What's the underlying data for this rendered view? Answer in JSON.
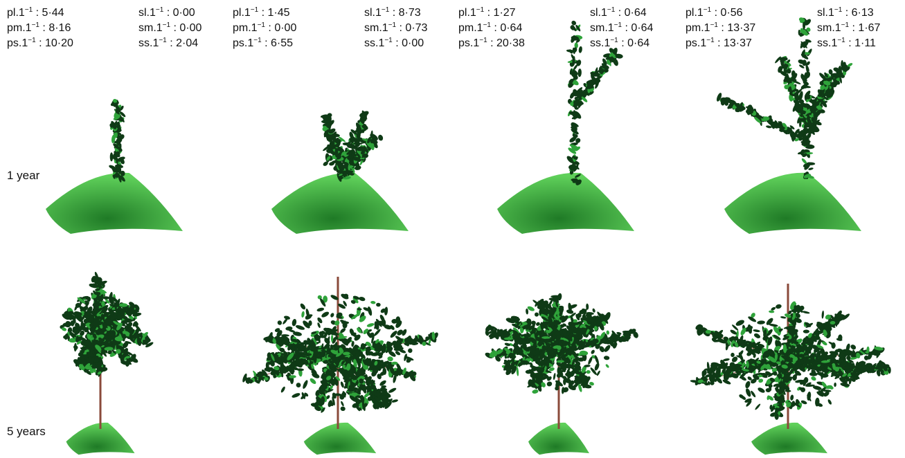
{
  "row_labels": {
    "year1": "1 year",
    "year5": "5 years"
  },
  "panels": [
    {
      "pl": "5·44",
      "pm": "8·16",
      "ps": "10·20",
      "sl": "0·00",
      "sm": "0·00",
      "ss": "2·04"
    },
    {
      "pl": "1·45",
      "pm": "0·00",
      "ps": "6·55",
      "sl": "8·73",
      "sm": "0·73",
      "ss": "0·00"
    },
    {
      "pl": "1·27",
      "pm": "0·64",
      "ps": "20·38",
      "sl": "0·64",
      "sm": "0·64",
      "ss": "0·64"
    },
    {
      "pl": "0·56",
      "pm": "13·37",
      "ps": "13·37",
      "sl": "6·13",
      "sm": "1·67",
      "ss": "1·11"
    }
  ],
  "param_names": {
    "pl": "pl.1",
    "pm": "pm.1",
    "ps": "ps.1",
    "sl": "sl.1",
    "sm": "sm.1",
    "ss": "ss.1"
  },
  "exponent": "−1",
  "colors": {
    "ground": "#2f9e33",
    "ground_light": "#5fd05a",
    "foliage_dark": "#0f3a16",
    "foliage_light": "#2fa33a",
    "trunk": "#8a4a3a"
  }
}
